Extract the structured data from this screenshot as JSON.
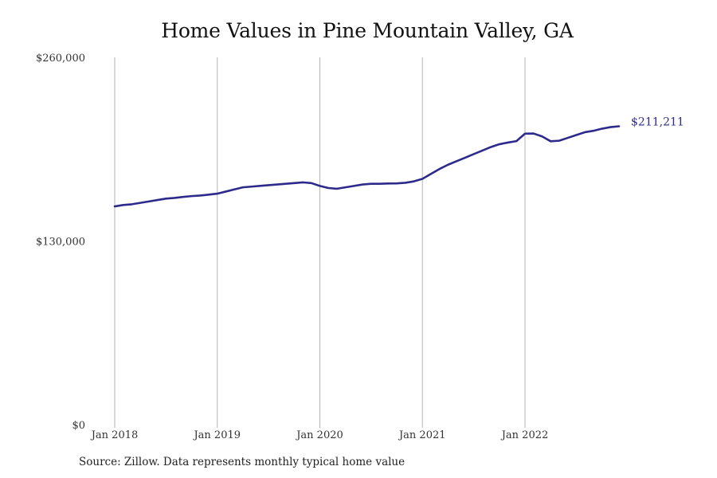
{
  "chart_data": {
    "type": "line",
    "title": "Home Values in Pine Mountain Valley, GA",
    "xlabel": "",
    "ylabel": "",
    "ylim": [
      0,
      260000
    ],
    "y_ticks": [
      0,
      130000,
      260000
    ],
    "y_tick_labels": [
      "$0",
      "$130,000",
      "$260,000"
    ],
    "x_ticks": [
      "2018-01",
      "2019-01",
      "2020-01",
      "2021-01",
      "2022-01"
    ],
    "x_tick_labels": [
      "Jan 2018",
      "Jan 2019",
      "Jan 2020",
      "Jan 2021",
      "Jan 2022"
    ],
    "grid": "vertical lines at x ticks",
    "line_color": "#2e2a8c",
    "end_label": "$211,211",
    "x": [
      "2018-01",
      "2018-02",
      "2018-03",
      "2018-04",
      "2018-05",
      "2018-06",
      "2018-07",
      "2018-08",
      "2018-09",
      "2018-10",
      "2018-11",
      "2018-12",
      "2019-01",
      "2019-02",
      "2019-03",
      "2019-04",
      "2019-05",
      "2019-06",
      "2019-07",
      "2019-08",
      "2019-09",
      "2019-10",
      "2019-11",
      "2019-12",
      "2020-01",
      "2020-02",
      "2020-03",
      "2020-04",
      "2020-05",
      "2020-06",
      "2020-07",
      "2020-08",
      "2020-09",
      "2020-10",
      "2020-11",
      "2020-12",
      "2021-01",
      "2021-02",
      "2021-03",
      "2021-04",
      "2021-05",
      "2021-06",
      "2021-07",
      "2021-08",
      "2021-09",
      "2021-10",
      "2021-11",
      "2021-12",
      "2022-01",
      "2022-02",
      "2022-03",
      "2022-04",
      "2022-05",
      "2022-06",
      "2022-07",
      "2022-08",
      "2022-09",
      "2022-10",
      "2022-11",
      "2022-12"
    ],
    "values": [
      154500,
      155500,
      156000,
      157000,
      158000,
      159000,
      160000,
      160500,
      161200,
      161800,
      162200,
      162800,
      163500,
      165000,
      166500,
      168000,
      168500,
      169000,
      169500,
      170000,
      170500,
      171000,
      171500,
      171000,
      169000,
      167500,
      167000,
      168000,
      169000,
      170000,
      170500,
      170500,
      170700,
      170800,
      171200,
      172200,
      174000,
      177500,
      181000,
      184000,
      186500,
      189000,
      191500,
      194000,
      196500,
      198500,
      199700,
      200700,
      206000,
      206100,
      204000,
      200600,
      201000,
      203000,
      205000,
      207000,
      208000,
      209500,
      210600,
      211211
    ]
  },
  "footer": {
    "source": "Source: Zillow. Data represents monthly typical home value"
  }
}
